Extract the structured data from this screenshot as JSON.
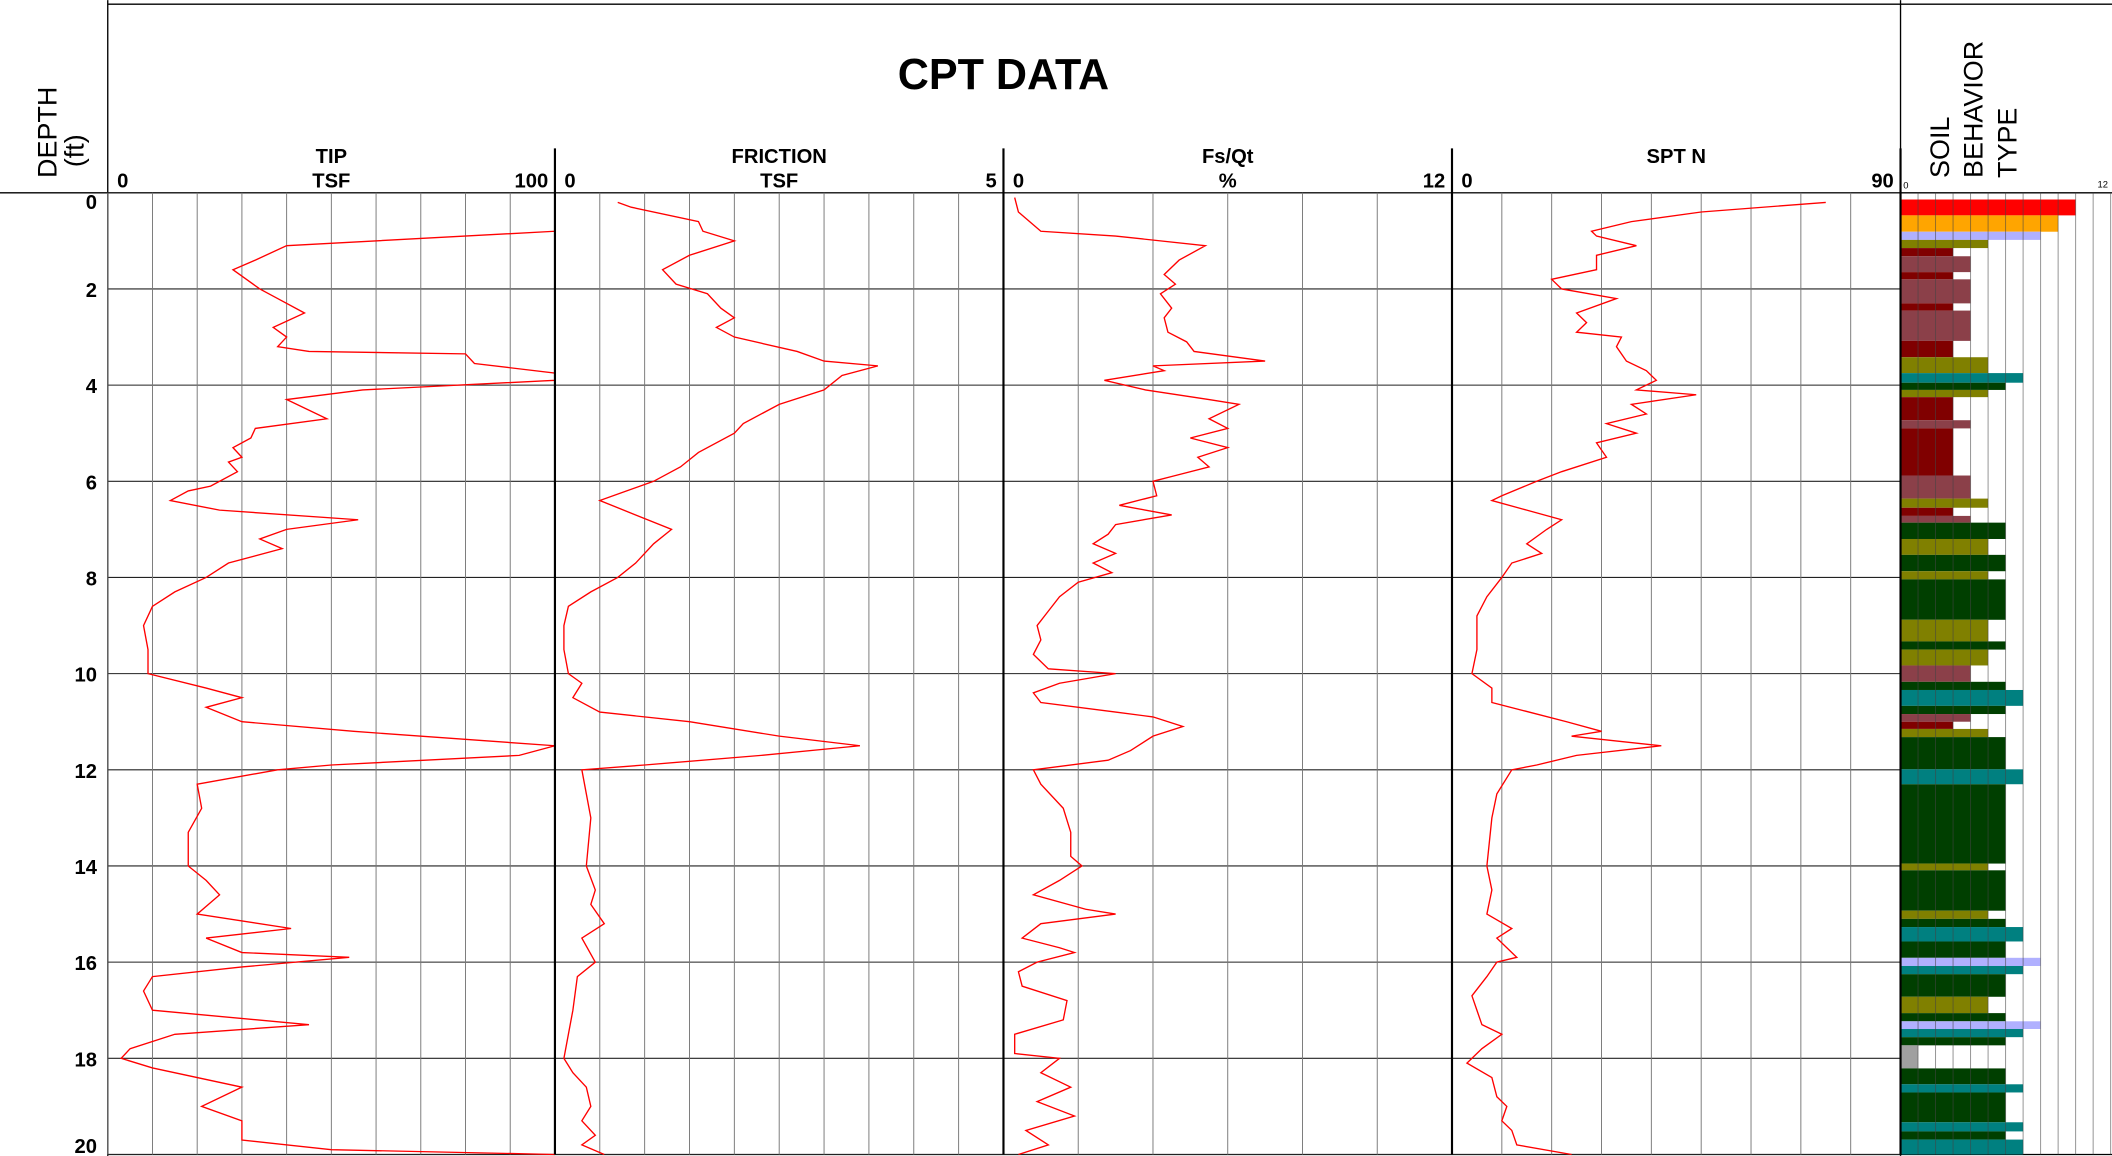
{
  "header": {
    "title": "CPT DATA",
    "depth_label": "DEPTH",
    "depth_unit": "(ft)"
  },
  "depth_axis": {
    "ylim": [
      0,
      20
    ],
    "yticks": [
      0,
      2,
      4,
      6,
      8,
      10,
      12,
      14,
      16,
      18,
      20
    ]
  },
  "chart_data": [
    {
      "type": "line",
      "title": "TIP",
      "unit": "TSF",
      "color": "#ff0000",
      "xlim": [
        0,
        100
      ],
      "xticks": [
        0,
        10,
        20,
        30,
        40,
        50,
        60,
        70,
        80,
        90,
        100
      ],
      "y": [
        0.8,
        1.1,
        1.4,
        1.6,
        1.8,
        2.0,
        2.2,
        2.5,
        2.8,
        3.0,
        3.2,
        3.3,
        3.35,
        3.55,
        3.75,
        3.9,
        4.1,
        4.3,
        4.7,
        4.9,
        5.1,
        5.3,
        5.5,
        5.6,
        5.8,
        6.1,
        6.2,
        6.4,
        6.6,
        6.8,
        7.0,
        7.2,
        7.4,
        7.7,
        8.0,
        8.3,
        8.6,
        9.0,
        9.5,
        10.0,
        10.3,
        10.5,
        10.7,
        11.0,
        11.2,
        11.4,
        11.5,
        11.7,
        11.9,
        12.0,
        12.3,
        12.8,
        13.3,
        14.0,
        14.3,
        14.6,
        15.0,
        15.3,
        15.5,
        15.8,
        15.9,
        16.1,
        16.3,
        16.6,
        17.0,
        17.3,
        17.5,
        17.8,
        18.0,
        18.2,
        18.6,
        19.0,
        19.3,
        19.7,
        19.9,
        20.0
      ],
      "values": [
        100,
        40,
        33,
        28,
        31,
        34,
        38,
        44,
        37,
        40,
        38,
        45,
        80,
        82,
        100,
        100,
        57,
        40,
        49,
        33,
        32,
        28,
        30,
        27,
        29,
        23,
        18,
        14,
        25,
        56,
        40,
        34,
        39,
        27,
        22,
        15,
        10,
        8,
        9,
        9,
        22,
        30,
        22,
        30,
        55,
        85,
        100,
        92,
        50,
        38,
        20,
        21,
        18,
        18,
        22,
        25,
        20,
        41,
        22,
        30,
        54,
        30,
        10,
        8,
        10,
        45,
        15,
        5,
        3,
        10,
        30,
        21,
        30,
        30,
        50,
        100
      ]
    },
    {
      "type": "line",
      "title": "FRICTION",
      "unit": "TSF",
      "color": "#ff0000",
      "xlim": [
        0,
        5
      ],
      "xticks": [
        0,
        0.5,
        1,
        1.5,
        2,
        2.5,
        3,
        3.5,
        4,
        4.5,
        5
      ],
      "y": [
        0.2,
        0.3,
        0.6,
        0.8,
        1.0,
        1.3,
        1.6,
        1.9,
        2.1,
        2.4,
        2.6,
        2.8,
        3.0,
        3.3,
        3.5,
        3.6,
        3.8,
        4.1,
        4.4,
        4.8,
        5.0,
        5.4,
        5.7,
        6.0,
        6.2,
        6.4,
        6.7,
        7.0,
        7.3,
        7.7,
        8.0,
        8.3,
        8.6,
        9.0,
        9.5,
        10.0,
        10.2,
        10.5,
        10.8,
        11.0,
        11.3,
        11.5,
        11.7,
        11.9,
        12.0,
        12.5,
        13.0,
        14.0,
        14.5,
        14.8,
        15.2,
        15.5,
        16.0,
        16.3,
        17.0,
        17.5,
        18.0,
        18.3,
        18.6,
        19.0,
        19.3,
        19.6,
        19.8,
        20.0
      ],
      "values": [
        0.7,
        0.85,
        1.6,
        1.65,
        2.0,
        1.5,
        1.2,
        1.35,
        1.7,
        1.85,
        2.0,
        1.8,
        2.0,
        2.7,
        3.0,
        3.6,
        3.2,
        3.0,
        2.5,
        2.1,
        2.0,
        1.6,
        1.4,
        1.1,
        0.8,
        0.5,
        0.9,
        1.3,
        1.1,
        0.9,
        0.7,
        0.4,
        0.15,
        0.1,
        0.1,
        0.15,
        0.3,
        0.2,
        0.5,
        1.5,
        2.5,
        3.4,
        2.3,
        1.0,
        0.3,
        0.35,
        0.4,
        0.35,
        0.45,
        0.4,
        0.55,
        0.3,
        0.45,
        0.25,
        0.2,
        0.15,
        0.1,
        0.2,
        0.35,
        0.4,
        0.3,
        0.45,
        0.3,
        0.55
      ]
    },
    {
      "type": "line",
      "title": "Fs/Qt",
      "unit": "%",
      "color": "#ff0000",
      "xlim": [
        0,
        12
      ],
      "xticks": [
        0,
        2,
        4,
        6,
        8,
        10,
        12
      ],
      "y": [
        0.1,
        0.4,
        0.8,
        0.9,
        1.1,
        1.4,
        1.7,
        1.9,
        2.1,
        2.4,
        2.6,
        2.9,
        3.1,
        3.3,
        3.5,
        3.6,
        3.7,
        3.9,
        4.1,
        4.3,
        4.4,
        4.7,
        4.9,
        5.1,
        5.3,
        5.5,
        5.7,
        5.9,
        6.0,
        6.3,
        6.5,
        6.7,
        6.9,
        7.1,
        7.3,
        7.5,
        7.7,
        7.9,
        8.1,
        8.4,
        8.7,
        9.0,
        9.3,
        9.6,
        9.9,
        10.0,
        10.2,
        10.4,
        10.6,
        10.8,
        10.9,
        11.1,
        11.3,
        11.6,
        11.8,
        12.0,
        12.3,
        12.8,
        13.3,
        13.8,
        14.0,
        14.3,
        14.6,
        14.9,
        15.0,
        15.2,
        15.5,
        15.7,
        15.8,
        16.0,
        16.2,
        16.5,
        16.8,
        17.2,
        17.5,
        17.9,
        18.0,
        18.3,
        18.6,
        18.9,
        19.2,
        19.5,
        19.8,
        20.0
      ],
      "values": [
        0.3,
        0.4,
        1.0,
        3.0,
        5.4,
        4.7,
        4.3,
        4.6,
        4.2,
        4.5,
        4.3,
        4.4,
        4.9,
        5.1,
        7.0,
        4.0,
        4.3,
        2.7,
        3.8,
        5.5,
        6.3,
        5.5,
        6.0,
        5.0,
        6.0,
        5.2,
        5.5,
        4.5,
        4.0,
        4.1,
        3.1,
        4.5,
        3.0,
        2.8,
        2.4,
        3.0,
        2.4,
        2.9,
        2.0,
        1.5,
        1.2,
        0.9,
        1.0,
        0.8,
        1.2,
        3.0,
        1.5,
        0.8,
        1.0,
        3.0,
        4.0,
        4.8,
        4.0,
        3.4,
        2.8,
        0.8,
        1.0,
        1.6,
        1.8,
        1.8,
        2.1,
        1.5,
        0.8,
        2.2,
        3.0,
        1.0,
        0.5,
        1.5,
        1.9,
        0.9,
        0.4,
        0.5,
        1.7,
        1.6,
        0.3,
        0.3,
        1.5,
        1.0,
        1.8,
        0.9,
        1.9,
        0.6,
        1.2,
        0.4
      ]
    },
    {
      "type": "line",
      "title": "SPT N",
      "color": "#ff0000",
      "xlim": [
        0,
        90
      ],
      "xticks": [
        0,
        10,
        20,
        30,
        40,
        50,
        60,
        70,
        80,
        90
      ],
      "y": [
        0.2,
        0.4,
        0.6,
        0.8,
        0.9,
        1.1,
        1.3,
        1.6,
        1.8,
        2.0,
        2.2,
        2.5,
        2.7,
        2.9,
        3.0,
        3.2,
        3.5,
        3.7,
        3.9,
        4.1,
        4.2,
        4.4,
        4.6,
        4.8,
        5.0,
        5.2,
        5.5,
        5.8,
        6.0,
        6.3,
        6.4,
        6.6,
        6.8,
        7.0,
        7.3,
        7.5,
        7.7,
        8.0,
        8.4,
        8.8,
        9.5,
        10.0,
        10.3,
        10.6,
        11.0,
        11.2,
        11.3,
        11.5,
        11.7,
        11.9,
        12.0,
        12.5,
        13.0,
        14.0,
        14.5,
        15.0,
        15.3,
        15.5,
        15.9,
        16.0,
        16.3,
        16.7,
        17.0,
        17.3,
        17.5,
        17.8,
        18.1,
        18.4,
        18.8,
        19.0,
        19.3,
        19.5,
        19.8,
        20.0
      ],
      "values": [
        75,
        50,
        36,
        28,
        29,
        37,
        29,
        29,
        20,
        22,
        33,
        25,
        27,
        25,
        34,
        33,
        35,
        39,
        41,
        37,
        49,
        36,
        39,
        31,
        37,
        29,
        31,
        22,
        17,
        10,
        8,
        15,
        22,
        19,
        15,
        18,
        12,
        10,
        7,
        5,
        5,
        4,
        8,
        8,
        23,
        30,
        24,
        42,
        25,
        17,
        12,
        9,
        8,
        7,
        8,
        7,
        12,
        9,
        13,
        9,
        7,
        4,
        5,
        6,
        10,
        6,
        3,
        8,
        9,
        11,
        10,
        12,
        13,
        24
      ]
    },
    {
      "type": "bar",
      "title_lines": [
        "SOIL",
        "BEHAVIOR",
        "TYPE"
      ],
      "xlim": [
        0,
        12
      ],
      "xticks": [
        0,
        1,
        2,
        3,
        4,
        5,
        6,
        7,
        8,
        9,
        10,
        11,
        12
      ],
      "zone_colors": {
        "1": "#a0a0a0",
        "3": "#800000",
        "4": "#8b4049",
        "5": "#808000",
        "6": "#003f00",
        "7": "#008080",
        "8": "#b0b0ff",
        "9": "#ffa500",
        "10": "#ff0000"
      },
      "top": [
        0.14,
        0.47,
        0.81,
        0.98,
        1.15,
        1.32,
        1.65,
        1.8,
        2.3,
        2.45,
        3.08,
        3.42,
        3.75,
        3.95,
        4.1,
        4.25,
        4.73,
        4.9,
        5.88,
        6.36,
        6.55,
        6.72,
        6.86,
        7.2,
        7.53,
        7.87,
        8.04,
        8.88,
        9.33,
        9.5,
        9.83,
        10.17,
        10.34,
        10.67,
        10.84,
        11.0,
        11.15,
        11.32,
        11.99,
        12.3,
        13.95,
        14.09,
        14.93,
        15.1,
        15.27,
        15.57,
        15.91,
        16.08,
        16.25,
        16.72,
        17.06,
        17.23,
        17.39,
        17.56,
        17.73,
        18.21,
        18.54,
        18.71,
        19.33,
        19.52,
        19.69
      ],
      "bottom": [
        0.47,
        0.81,
        0.98,
        1.15,
        1.32,
        1.65,
        1.8,
        2.3,
        2.45,
        3.08,
        3.42,
        3.75,
        3.95,
        4.1,
        4.25,
        4.73,
        4.9,
        5.88,
        6.36,
        6.55,
        6.72,
        6.86,
        7.2,
        7.53,
        7.87,
        8.04,
        8.88,
        9.33,
        9.5,
        9.83,
        10.17,
        10.34,
        10.67,
        10.84,
        11.0,
        11.15,
        11.32,
        11.99,
        12.3,
        13.95,
        14.09,
        14.93,
        15.1,
        15.27,
        15.57,
        15.91,
        16.08,
        16.25,
        16.72,
        17.06,
        17.23,
        17.39,
        17.56,
        17.73,
        18.21,
        18.54,
        18.71,
        19.33,
        19.52,
        19.69,
        20.0
      ],
      "values": [
        10,
        9,
        8,
        5,
        3,
        4,
        3,
        4,
        3,
        4,
        3,
        5,
        7,
        6,
        5,
        3,
        4,
        3,
        4,
        5,
        3,
        4,
        6,
        5,
        6,
        5,
        6,
        5,
        6,
        5,
        4,
        6,
        7,
        6,
        4,
        3,
        5,
        6,
        7,
        6,
        5,
        6,
        5,
        6,
        7,
        6,
        8,
        7,
        6,
        5,
        6,
        8,
        7,
        6,
        1,
        6,
        7,
        6,
        7,
        6,
        7
      ]
    }
  ]
}
